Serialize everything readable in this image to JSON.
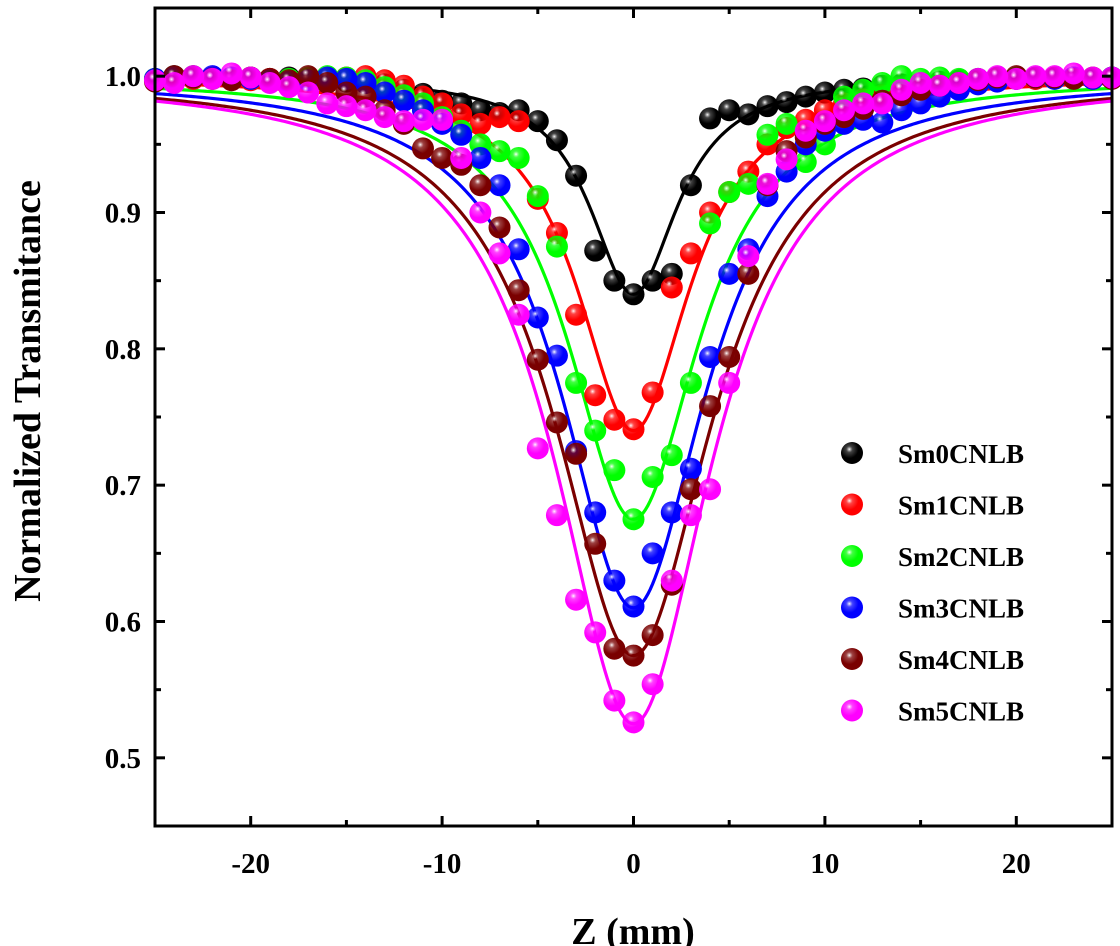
{
  "chart_data": {
    "type": "scatter",
    "xlabel": "Z (mm)",
    "ylabel": "Normalized Transmitance",
    "xlim": [
      -25,
      25
    ],
    "ylim": [
      0.45,
      1.05
    ],
    "x_ticks": [
      -20,
      -10,
      0,
      10,
      20
    ],
    "y_ticks": [
      0.5,
      0.6,
      0.7,
      0.8,
      0.9,
      1.0
    ],
    "x_tick_labels": [
      "-20",
      "-10",
      "0",
      "10",
      "20"
    ],
    "y_tick_labels": [
      "0.5",
      "0.6",
      "0.7",
      "0.8",
      "0.9",
      "1.0"
    ],
    "legend_position": "center-right",
    "x": [
      -25,
      -24,
      -23,
      -22,
      -21,
      -20,
      -19,
      -18,
      -17,
      -16,
      -15,
      -14,
      -13,
      -12,
      -11,
      -10,
      -9,
      -8,
      -7,
      -6,
      -5,
      -4,
      -3,
      -2,
      -1,
      0,
      1,
      2,
      3,
      4,
      5,
      6,
      7,
      8,
      9,
      10,
      11,
      12,
      13,
      14,
      15,
      16,
      17,
      18,
      19,
      20,
      21,
      22,
      23,
      24,
      25
    ],
    "series": [
      {
        "name": "Sm0CNLB",
        "color": "#000000",
        "fit_depth": 0.16,
        "fit_width": 2.8,
        "values": [
          0.998,
          1.0,
          1.0,
          0.999,
          0.998,
          0.999,
          0.998,
          0.999,
          0.998,
          0.997,
          0.996,
          0.995,
          0.994,
          0.99,
          0.987,
          0.982,
          0.98,
          0.975,
          0.973,
          0.975,
          0.967,
          0.953,
          0.927,
          0.872,
          0.85,
          0.84,
          0.85,
          0.855,
          0.92,
          0.969,
          0.975,
          0.972,
          0.978,
          0.981,
          0.985,
          0.988,
          0.99,
          0.991,
          0.993,
          0.994,
          0.995,
          0.996,
          0.997,
          0.998,
          0.999,
          0.999,
          0.998,
          0.999,
          0.999,
          0.998,
          0.999
        ]
      },
      {
        "name": "Sm1CNLB",
        "color": "#ff0000",
        "fit_depth": 0.26,
        "fit_width": 3.6,
        "values": [
          0.997,
          0.999,
          0.998,
          0.999,
          0.998,
          0.997,
          0.998,
          0.997,
          0.996,
          0.998,
          0.999,
          1.0,
          0.997,
          0.993,
          0.985,
          0.98,
          0.972,
          0.965,
          0.97,
          0.967,
          0.91,
          0.885,
          0.825,
          0.766,
          0.748,
          0.741,
          0.768,
          0.845,
          0.87,
          0.9,
          0.915,
          0.93,
          0.95,
          0.962,
          0.968,
          0.975,
          0.98,
          0.983,
          0.986,
          0.989,
          0.991,
          0.993,
          0.994,
          0.996,
          0.997,
          0.998,
          0.998,
          0.999,
          0.999,
          0.998,
          0.999
        ]
      },
      {
        "name": "Sm2CNLB",
        "color": "#00ff00",
        "fit_depth": 0.325,
        "fit_width": 4.2,
        "values": [
          0.998,
          0.999,
          0.999,
          0.998,
          0.999,
          0.998,
          0.997,
          0.998,
          0.999,
          1.0,
          0.999,
          0.997,
          0.992,
          0.986,
          0.98,
          0.97,
          0.96,
          0.95,
          0.945,
          0.94,
          0.912,
          0.875,
          0.775,
          0.74,
          0.711,
          0.675,
          0.706,
          0.722,
          0.775,
          0.892,
          0.915,
          0.921,
          0.957,
          0.965,
          0.937,
          0.95,
          0.985,
          0.99,
          0.995,
          1.0,
          0.998,
          0.999,
          0.998,
          0.997,
          0.998,
          0.999,
          0.999,
          0.998,
          0.999,
          0.998,
          0.999
        ]
      },
      {
        "name": "Sm3CNLB",
        "color": "#0000ff",
        "fit_depth": 0.39,
        "fit_width": 4.6,
        "values": [
          0.998,
          0.999,
          0.999,
          1.0,
          0.999,
          0.998,
          0.997,
          0.996,
          0.997,
          0.999,
          0.998,
          0.995,
          0.988,
          0.982,
          0.975,
          0.965,
          0.957,
          0.94,
          0.92,
          0.873,
          0.823,
          0.795,
          0.725,
          0.68,
          0.63,
          0.611,
          0.65,
          0.68,
          0.712,
          0.794,
          0.855,
          0.873,
          0.912,
          0.93,
          0.95,
          0.96,
          0.965,
          0.968,
          0.966,
          0.975,
          0.98,
          0.985,
          0.99,
          0.994,
          0.996,
          0.998,
          0.999,
          0.998,
          0.999,
          0.998,
          0.999
        ]
      },
      {
        "name": "Sm4CNLB",
        "color": "#7a0000",
        "fit_depth": 0.425,
        "fit_width": 5.0,
        "values": [
          0.996,
          1.0,
          0.999,
          0.998,
          0.997,
          0.999,
          0.998,
          0.997,
          1.0,
          0.995,
          0.988,
          0.985,
          0.975,
          0.965,
          0.947,
          0.94,
          0.935,
          0.92,
          0.889,
          0.843,
          0.792,
          0.746,
          0.723,
          0.657,
          0.58,
          0.575,
          0.59,
          0.627,
          0.697,
          0.758,
          0.794,
          0.855,
          0.92,
          0.945,
          0.955,
          0.965,
          0.97,
          0.976,
          0.982,
          0.986,
          0.99,
          0.993,
          0.995,
          0.997,
          0.999,
          1.0,
          0.999,
          0.999,
          0.998,
          0.999,
          0.998
        ]
      },
      {
        "name": "Sm5CNLB",
        "color": "#ff00ff",
        "fit_depth": 0.475,
        "fit_width": 5.0,
        "values": [
          0.997,
          0.995,
          1.0,
          0.998,
          1.002,
          0.999,
          0.995,
          0.992,
          0.988,
          0.98,
          0.978,
          0.975,
          0.97,
          0.967,
          0.968,
          0.968,
          0.94,
          0.9,
          0.87,
          0.825,
          0.727,
          0.678,
          0.616,
          0.592,
          0.542,
          0.526,
          0.554,
          0.63,
          0.678,
          0.697,
          0.775,
          0.868,
          0.921,
          0.939,
          0.96,
          0.967,
          0.975,
          0.98,
          0.98,
          0.99,
          0.995,
          0.993,
          0.995,
          0.998,
          1.0,
          0.998,
          1.0,
          1.0,
          1.002,
          0.999,
          0.999
        ]
      }
    ]
  }
}
